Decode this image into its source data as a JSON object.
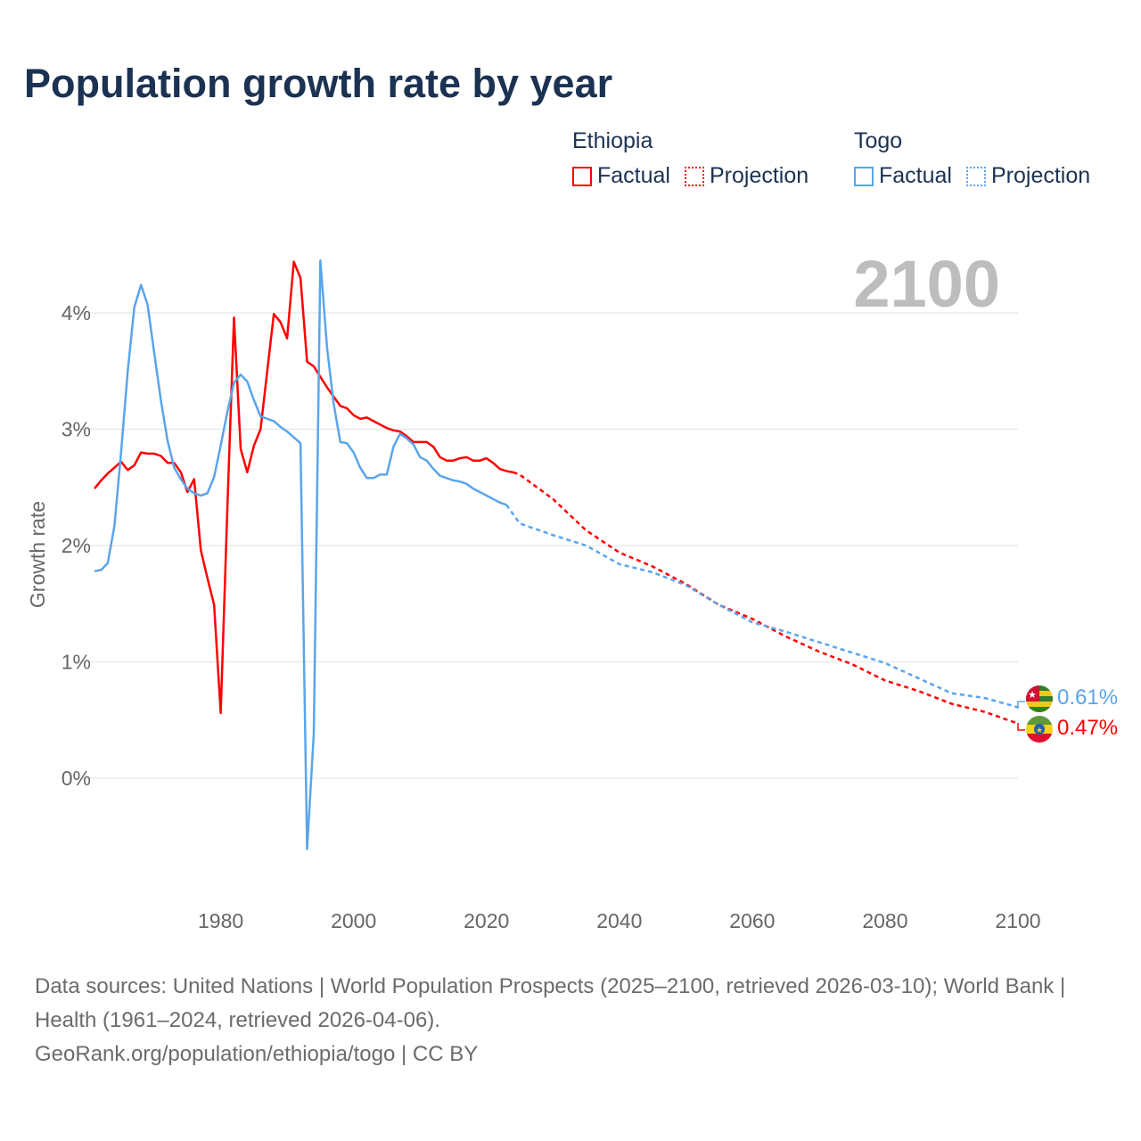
{
  "title": "Population growth rate by year",
  "current_year_label": "2100",
  "legend": {
    "groups": [
      {
        "name": "Ethiopia",
        "factual": "Factual",
        "projection": "Projection",
        "color": "#ff0000"
      },
      {
        "name": "Togo",
        "factual": "Factual",
        "projection": "Projection",
        "color": "#5aa5ea"
      }
    ]
  },
  "end_labels": {
    "togo": "0.61%",
    "ethiopia": "0.47%"
  },
  "footer": {
    "sources": "Data sources: United Nations | World Population Prospects (2025–2100, retrieved 2026-03-10); World Bank | Health (1961–2024, retrieved 2026-04-06).",
    "credit": "GeoRank.org/population/ethiopia/togo | CC BY"
  },
  "chart_data": {
    "type": "line",
    "title": "Population growth rate by year",
    "xlabel": "",
    "ylabel": "Growth rate",
    "xlim": [
      1961,
      2100
    ],
    "ylim": [
      -1.0,
      4.5
    ],
    "x_ticks": [
      "1980",
      "2000",
      "2020",
      "2040",
      "2060",
      "2080",
      "2100"
    ],
    "x_tick_values": [
      1980,
      2000,
      2020,
      2040,
      2060,
      2080,
      2100
    ],
    "y_ticks": [
      "0%",
      "1%",
      "2%",
      "3%",
      "4%"
    ],
    "y_tick_values": [
      0,
      1,
      2,
      3,
      4
    ],
    "grid": true,
    "legend_placement": "top-right",
    "series": [
      {
        "name": "Ethiopia Factual",
        "color": "#ff0000",
        "style": "solid",
        "x": [
          1961,
          1962,
          1963,
          1964,
          1965,
          1966,
          1967,
          1968,
          1969,
          1970,
          1971,
          1972,
          1973,
          1974,
          1975,
          1976,
          1977,
          1978,
          1979,
          1980,
          1981,
          1982,
          1983,
          1984,
          1985,
          1986,
          1987,
          1988,
          1989,
          1990,
          1991,
          1992,
          1993,
          1994,
          1995,
          1996,
          1997,
          1998,
          1999,
          2000,
          2001,
          2002,
          2003,
          2004,
          2005,
          2006,
          2007,
          2008,
          2009,
          2010,
          2011,
          2012,
          2013,
          2014,
          2015,
          2016,
          2017,
          2018,
          2019,
          2020,
          2021,
          2022,
          2023,
          2024
        ],
        "values": [
          2.49,
          2.56,
          2.62,
          2.67,
          2.72,
          2.65,
          2.69,
          2.8,
          2.79,
          2.79,
          2.77,
          2.71,
          2.71,
          2.63,
          2.46,
          2.57,
          1.96,
          1.72,
          1.49,
          0.56,
          2.33,
          3.96,
          2.83,
          2.63,
          2.86,
          3.0,
          3.5,
          3.99,
          3.92,
          3.78,
          4.44,
          4.3,
          3.58,
          3.54,
          3.45,
          3.36,
          3.28,
          3.2,
          3.18,
          3.12,
          3.09,
          3.1,
          3.07,
          3.04,
          3.01,
          2.99,
          2.98,
          2.94,
          2.89,
          2.89,
          2.89,
          2.85,
          2.76,
          2.73,
          2.73,
          2.75,
          2.76,
          2.73,
          2.73,
          2.75,
          2.71,
          2.66,
          2.64,
          2.63
        ]
      },
      {
        "name": "Ethiopia Projection",
        "color": "#ff0000",
        "style": "dotted",
        "x": [
          2024,
          2025,
          2030,
          2035,
          2040,
          2045,
          2050,
          2055,
          2060,
          2065,
          2070,
          2075,
          2080,
          2085,
          2090,
          2095,
          2100
        ],
        "values": [
          2.63,
          2.61,
          2.4,
          2.13,
          1.94,
          1.82,
          1.67,
          1.49,
          1.37,
          1.22,
          1.09,
          0.98,
          0.84,
          0.75,
          0.64,
          0.57,
          0.47
        ]
      },
      {
        "name": "Togo Factual",
        "color": "#5aa5ea",
        "style": "solid",
        "x": [
          1961,
          1962,
          1963,
          1964,
          1965,
          1966,
          1967,
          1968,
          1969,
          1970,
          1971,
          1972,
          1973,
          1974,
          1975,
          1976,
          1977,
          1978,
          1979,
          1980,
          1981,
          1982,
          1983,
          1984,
          1985,
          1986,
          1987,
          1988,
          1989,
          1990,
          1991,
          1992,
          1993,
          1994,
          1995,
          1996,
          1997,
          1998,
          1999,
          2000,
          2001,
          2002,
          2003,
          2004,
          2005,
          2006,
          2007,
          2008,
          2009,
          2010,
          2011,
          2012,
          2013,
          2014,
          2015,
          2016,
          2017,
          2018,
          2019,
          2020,
          2021,
          2022,
          2023
        ],
        "values": [
          1.78,
          1.79,
          1.85,
          2.17,
          2.8,
          3.5,
          4.05,
          4.24,
          4.07,
          3.65,
          3.25,
          2.9,
          2.67,
          2.57,
          2.49,
          2.45,
          2.43,
          2.45,
          2.59,
          2.86,
          3.15,
          3.4,
          3.47,
          3.41,
          3.25,
          3.11,
          3.09,
          3.07,
          3.02,
          2.98,
          2.93,
          2.88,
          -0.61,
          0.38,
          4.45,
          3.7,
          3.22,
          2.89,
          2.88,
          2.8,
          2.67,
          2.58,
          2.58,
          2.61,
          2.61,
          2.85,
          2.96,
          2.92,
          2.87,
          2.76,
          2.73,
          2.66,
          2.6,
          2.58,
          2.56,
          2.55,
          2.53,
          2.49,
          2.46,
          2.43,
          2.4,
          2.37,
          2.35
        ]
      },
      {
        "name": "Togo Projection",
        "color": "#5aa5ea",
        "style": "dotted",
        "x": [
          2023,
          2025,
          2030,
          2035,
          2040,
          2045,
          2050,
          2055,
          2060,
          2065,
          2070,
          2075,
          2080,
          2085,
          2090,
          2095,
          2100
        ],
        "values": [
          2.35,
          2.19,
          2.09,
          2.0,
          1.84,
          1.77,
          1.66,
          1.49,
          1.34,
          1.26,
          1.17,
          1.08,
          0.99,
          0.86,
          0.73,
          0.69,
          0.61
        ]
      }
    ]
  }
}
